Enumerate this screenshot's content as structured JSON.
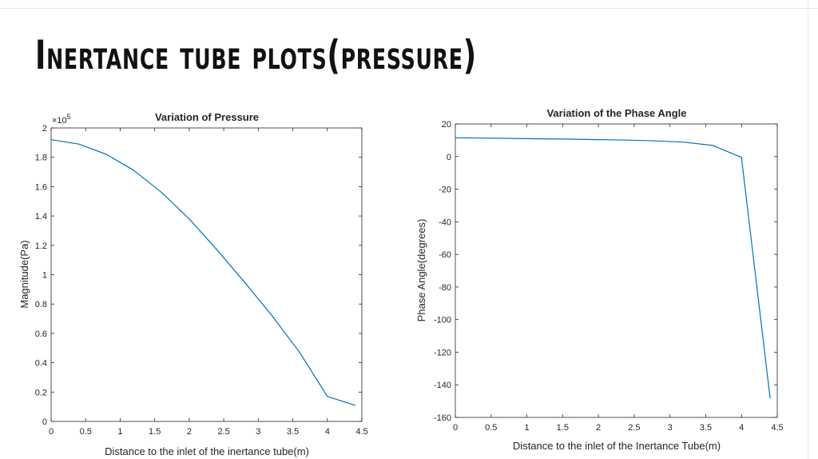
{
  "slide": {
    "title": "Inertance tube plots(pressure)"
  },
  "colors": {
    "line": "#0072BD",
    "axes": "#262626",
    "background": "#ffffff"
  },
  "chart_data": [
    {
      "type": "line",
      "title": "Variation of Pressure",
      "xlabel": "Distance to the inlet of the inertance tube(m)",
      "ylabel": "Magnitude(Pa)",
      "exponent_label": "×10",
      "exponent_power": "5",
      "xlim": [
        0,
        4.5
      ],
      "ylim": [
        0,
        2
      ],
      "xticks": [
        0,
        0.5,
        1,
        1.5,
        2,
        2.5,
        3,
        3.5,
        4,
        4.5
      ],
      "xtick_labels": [
        "0",
        "0.5",
        "1",
        "1.5",
        "2",
        "2.5",
        "3",
        "3.5",
        "4",
        "4.5"
      ],
      "yticks": [
        0,
        0.2,
        0.4,
        0.6,
        0.8,
        1,
        1.2,
        1.4,
        1.6,
        1.8,
        2
      ],
      "ytick_labels": [
        "0",
        "0.2",
        "0.4",
        "0.6",
        "0.8",
        "1",
        "1.2",
        "1.4",
        "1.6",
        "1.8",
        "2"
      ],
      "series": [
        {
          "x": [
            0,
            0.4,
            0.8,
            1.2,
            1.6,
            2.0,
            2.4,
            2.8,
            3.2,
            3.6,
            4.0,
            4.4
          ],
          "y": [
            1.92,
            1.89,
            1.82,
            1.71,
            1.56,
            1.38,
            1.17,
            0.95,
            0.72,
            0.47,
            0.17,
            0.11
          ]
        }
      ]
    },
    {
      "type": "line",
      "title": "Variation of the Phase Angle",
      "xlabel": "Distance to the inlet of the Inertance Tube(m)",
      "ylabel": "Phase Angle(degrees)",
      "xlim": [
        0,
        4.5
      ],
      "ylim": [
        -160,
        20
      ],
      "xticks": [
        0,
        0.5,
        1,
        1.5,
        2,
        2.5,
        3,
        3.5,
        4,
        4.5
      ],
      "xtick_labels": [
        "0",
        "0.5",
        "1",
        "1.5",
        "2",
        "2.5",
        "3",
        "3.5",
        "4",
        "4.5"
      ],
      "yticks": [
        -160,
        -140,
        -120,
        -100,
        -80,
        -60,
        -40,
        -20,
        0,
        20
      ],
      "ytick_labels": [
        "-160",
        "-140",
        "-120",
        "-100",
        "-80",
        "-60",
        "-40",
        "-20",
        "0",
        "20"
      ],
      "series": [
        {
          "x": [
            0,
            0.4,
            0.8,
            1.2,
            1.6,
            2.0,
            2.4,
            2.8,
            3.2,
            3.6,
            4.0,
            4.4
          ],
          "y": [
            11.5,
            11.3,
            11.1,
            10.9,
            10.7,
            10.4,
            10.1,
            9.6,
            8.8,
            6.8,
            -0.5,
            -148
          ]
        }
      ]
    }
  ]
}
